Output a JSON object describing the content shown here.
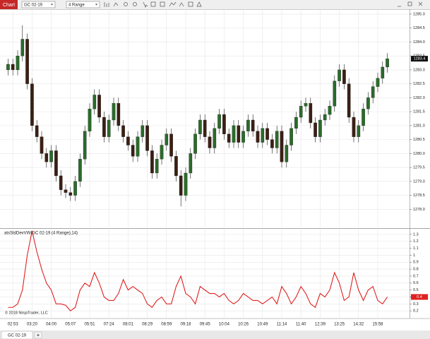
{
  "window": {
    "tab": "Chart",
    "instrument": "GC 02-19",
    "interval": "4 Range",
    "copyright": "© 2018 NinjaTrader, LLC",
    "bottom_tab": "GC 02-19",
    "add_tab": "+"
  },
  "chart_data": [
    {
      "type": "candlestick",
      "up_color": "#2b6b2b",
      "down_color": "#3b1f14",
      "grid": true,
      "categories": [
        null,
        "02:53",
        null,
        null,
        null,
        "03:20",
        null,
        null,
        null,
        "04:00",
        null,
        null,
        null,
        "05:07",
        null,
        null,
        null,
        "05:51",
        null,
        null,
        null,
        "07:24",
        null,
        null,
        null,
        "08:01",
        null,
        null,
        null,
        "08:29",
        null,
        null,
        null,
        "08:59",
        null,
        null,
        null,
        "09:18",
        null,
        null,
        null,
        "09:45",
        null,
        null,
        null,
        "10:04",
        null,
        null,
        null,
        "10:26",
        null,
        null,
        null,
        "10:49",
        null,
        null,
        null,
        "11:14",
        null,
        null,
        null,
        "11:40",
        null,
        null,
        null,
        "12:39",
        null,
        null,
        null,
        "13:25",
        null,
        null,
        null,
        "14:32",
        null,
        null,
        null,
        "15:58",
        null,
        null
      ],
      "open": [
        1283.0,
        1283.2,
        1283.0,
        1283.5,
        1284.1,
        1282.5,
        1281.0,
        1280.6,
        1280.0,
        1279.7,
        1280.1,
        1279.2,
        1278.7,
        1278.6,
        1278.5,
        1279.0,
        1279.8,
        1280.8,
        1281.6,
        1282.1,
        1281.3,
        1280.6,
        1281.2,
        1281.8,
        1281.0,
        1280.6,
        1280.3,
        1279.9,
        1280.6,
        1281.0,
        1280.1,
        1279.3,
        1279.8,
        1280.3,
        1280.7,
        1279.9,
        1279.2,
        1278.5,
        1279.3,
        1280.0,
        1280.7,
        1281.2,
        1280.6,
        1280.2,
        1280.9,
        1281.4,
        1280.7,
        1280.4,
        1281.0,
        1280.4,
        1280.8,
        1281.2,
        1280.8,
        1280.4,
        1280.9,
        1280.5,
        1280.2,
        1280.8,
        1279.7,
        1280.3,
        1280.9,
        1281.3,
        1281.7,
        1281.8,
        1281.1,
        1280.6,
        1281.2,
        1281.4,
        1281.7,
        1282.6,
        1283.0,
        1282.5,
        1281.3,
        1280.6,
        1281.0,
        1281.6,
        1282.0,
        1282.4,
        1282.7,
        1283.1
      ],
      "high": [
        1283.4,
        1283.4,
        1283.7,
        1284.6,
        1284.3,
        1282.7,
        1281.2,
        1280.8,
        1280.2,
        1280.3,
        1280.3,
        1279.4,
        1278.9,
        1278.8,
        1279.2,
        1280.0,
        1281.0,
        1281.8,
        1282.3,
        1282.3,
        1281.5,
        1281.4,
        1282.0,
        1282.0,
        1281.2,
        1280.8,
        1280.5,
        1280.8,
        1281.2,
        1281.2,
        1280.3,
        1280.0,
        1280.5,
        1280.9,
        1280.9,
        1280.1,
        1279.4,
        1279.5,
        1280.2,
        1280.9,
        1281.4,
        1281.4,
        1280.8,
        1281.1,
        1281.6,
        1281.6,
        1280.9,
        1281.2,
        1281.2,
        1281.0,
        1281.4,
        1281.4,
        1281.0,
        1281.1,
        1281.1,
        1280.7,
        1281.0,
        1281.0,
        1280.5,
        1281.1,
        1281.5,
        1281.9,
        1282.0,
        1282.0,
        1281.3,
        1281.4,
        1281.6,
        1281.9,
        1282.8,
        1283.2,
        1283.2,
        1282.7,
        1281.5,
        1281.2,
        1281.8,
        1282.2,
        1282.6,
        1282.9,
        1283.3,
        1283.6
      ],
      "low": [
        1282.8,
        1282.8,
        1282.8,
        1283.3,
        1282.3,
        1280.8,
        1280.4,
        1279.8,
        1279.5,
        1279.5,
        1279.0,
        1278.5,
        1278.4,
        1278.3,
        1278.3,
        1278.8,
        1279.6,
        1280.6,
        1281.4,
        1281.1,
        1280.4,
        1280.4,
        1281.0,
        1280.8,
        1280.4,
        1280.1,
        1279.7,
        1279.7,
        1280.4,
        1279.9,
        1279.1,
        1279.1,
        1279.6,
        1280.1,
        1279.7,
        1279.0,
        1278.1,
        1278.3,
        1279.1,
        1279.8,
        1280.5,
        1280.4,
        1280.0,
        1280.0,
        1280.7,
        1280.5,
        1280.2,
        1280.2,
        1280.2,
        1280.2,
        1280.6,
        1280.6,
        1280.2,
        1280.2,
        1280.3,
        1280.0,
        1280.0,
        1279.5,
        1279.5,
        1280.1,
        1280.7,
        1281.1,
        1281.5,
        1280.9,
        1280.4,
        1280.4,
        1281.0,
        1281.2,
        1281.5,
        1282.4,
        1282.3,
        1281.1,
        1280.4,
        1280.4,
        1280.8,
        1281.4,
        1281.8,
        1282.2,
        1282.5,
        1282.9
      ],
      "close": [
        1283.2,
        1283.0,
        1283.5,
        1284.1,
        1282.5,
        1281.0,
        1280.6,
        1280.0,
        1279.7,
        1280.1,
        1279.2,
        1278.7,
        1278.6,
        1278.5,
        1279.0,
        1279.8,
        1280.8,
        1281.6,
        1282.1,
        1281.3,
        1280.6,
        1281.2,
        1281.8,
        1281.0,
        1280.6,
        1280.3,
        1279.9,
        1280.6,
        1281.0,
        1280.1,
        1279.3,
        1279.8,
        1280.3,
        1280.7,
        1279.9,
        1279.2,
        1278.5,
        1279.3,
        1280.0,
        1280.7,
        1281.2,
        1280.6,
        1280.2,
        1280.9,
        1281.4,
        1280.7,
        1280.4,
        1281.0,
        1280.4,
        1280.8,
        1281.2,
        1280.8,
        1280.4,
        1280.9,
        1280.5,
        1280.2,
        1280.8,
        1279.7,
        1280.3,
        1280.9,
        1281.3,
        1281.7,
        1281.8,
        1281.1,
        1280.6,
        1281.2,
        1281.4,
        1281.7,
        1282.6,
        1283.0,
        1282.5,
        1281.3,
        1280.6,
        1281.0,
        1281.6,
        1282.0,
        1282.4,
        1282.7,
        1283.1,
        1283.4
      ],
      "ylim": [
        1277.35,
        1285.15
      ],
      "yticks": [
        {
          "value": 1278.0,
          "label": "1278.0"
        },
        1278.5,
        {
          "value": 1279.0,
          "label": "1279.0"
        },
        1279.5,
        {
          "value": 1280.0,
          "label": "1280.0"
        },
        1280.5,
        {
          "value": 1281.0,
          "label": "1281.0"
        },
        1281.5,
        {
          "value": 1282.0,
          "label": "1282.0"
        },
        1282.5,
        {
          "value": 1283.0,
          "label": "1283.0"
        },
        1283.5,
        {
          "value": 1284.0,
          "label": "1284.0"
        },
        1284.5,
        {
          "value": 1285.0,
          "label": "1285.0"
        }
      ]
    },
    {
      "type": "line",
      "title": "atsStdDevVW(GC 02-19 (4 Range),14)",
      "grid": true,
      "series": [
        {
          "color": "#e02020",
          "values": [
            0.25,
            0.25,
            0.3,
            0.5,
            1.0,
            1.35,
            1.05,
            0.8,
            0.6,
            0.5,
            0.3,
            0.3,
            0.28,
            0.2,
            0.25,
            0.5,
            0.6,
            0.55,
            0.75,
            0.6,
            0.4,
            0.35,
            0.35,
            0.45,
            0.65,
            0.5,
            0.55,
            0.5,
            0.45,
            0.3,
            0.25,
            0.35,
            0.4,
            0.3,
            0.3,
            0.55,
            0.7,
            0.45,
            0.4,
            0.3,
            0.55,
            0.5,
            0.45,
            0.45,
            0.4,
            0.45,
            0.35,
            0.3,
            0.35,
            0.45,
            0.4,
            0.35,
            0.35,
            0.3,
            0.35,
            0.4,
            0.3,
            0.55,
            0.45,
            0.3,
            0.4,
            0.55,
            0.45,
            0.3,
            0.25,
            0.45,
            0.4,
            0.5,
            0.75,
            0.6,
            0.35,
            0.4,
            0.75,
            0.5,
            0.35,
            0.5,
            0.55,
            0.35,
            0.3,
            0.4
          ]
        }
      ],
      "ylim": [
        0.1,
        1.37
      ],
      "yticks": [
        0.2,
        0.3,
        0.4,
        0.5,
        0.6,
        0.7,
        0.8,
        0.9,
        1,
        1.1,
        1.2,
        1.3
      ]
    }
  ]
}
